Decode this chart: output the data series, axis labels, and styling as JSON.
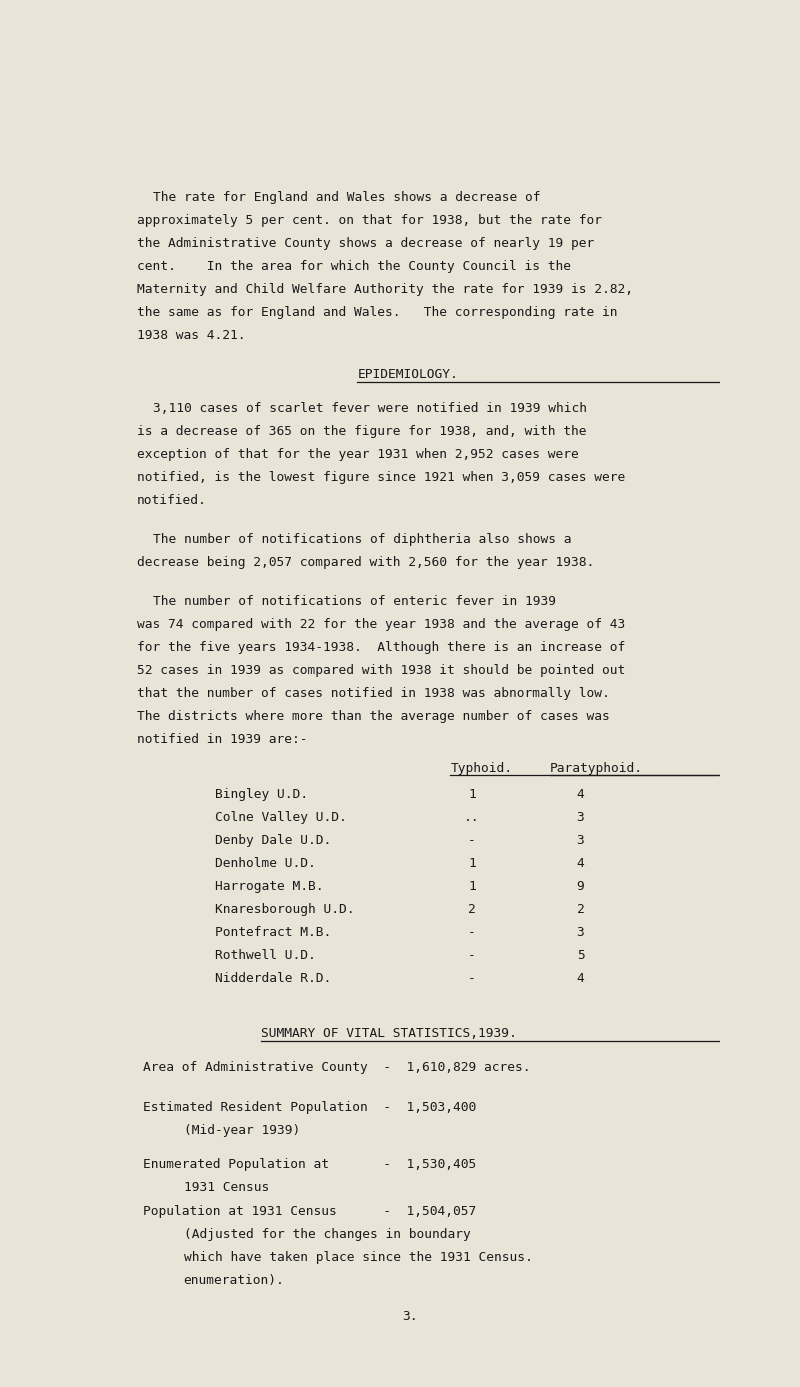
{
  "bg_color": "#e8e4d8",
  "text_color": "#1a1a1a",
  "lines_p1": [
    "The rate for England and Wales shows a decrease of",
    "approximately 5 per cent. on that for 1938, but the rate for",
    "the Administrative County shows a decrease of nearly 19 per",
    "cent.    In the area for which the County Council is the",
    "Maternity and Child Welfare Authority the rate for 1939 is 2.82,",
    "the same as for England and Wales.   The corresponding rate in",
    "1938 was 4.21."
  ],
  "heading1": "EPIDEMIOLOGY.",
  "lines_p2": [
    "3,110 cases of scarlet fever were notified in 1939 which",
    "is a decrease of 365 on the figure for 1938, and, with the",
    "exception of that for the year 1931 when 2,952 cases were",
    "notified, is the lowest figure since 1921 when 3,059 cases were",
    "notified."
  ],
  "lines_p3": [
    "The number of notifications of diphtheria also shows a",
    "decrease being 2,057 compared with 2,560 for the year 1938."
  ],
  "lines_p4": [
    "The number of notifications of enteric fever in 1939",
    "was 74 compared with 22 for the year 1938 and the average of 43",
    "for the five years 1934-1938.  Although there is an increase of",
    "52 cases in 1939 as compared with 1938 it should be pointed out",
    "that the number of cases notified in 1938 was abnormally low.",
    "The districts where more than the average number of cases was",
    "notified in 1939 are:-"
  ],
  "table_col1_header": "Typhoid.",
  "table_col2_header": "Paratyphoid.",
  "table_rows": [
    [
      "Bingley U.D.",
      "1",
      "4"
    ],
    [
      "Colne Valley U.D.",
      "..",
      "3"
    ],
    [
      "Denby Dale U.D.",
      "-",
      "3"
    ],
    [
      "Denholme U.D.",
      "1",
      "4"
    ],
    [
      "Harrogate M.B.",
      "1",
      "9"
    ],
    [
      "Knaresborough U.D.",
      "2",
      "2"
    ],
    [
      "Pontefract M.B.",
      "-",
      "3"
    ],
    [
      "Rothwell U.D.",
      "-",
      "5"
    ],
    [
      "Nidderdale R.D.",
      "-",
      "4"
    ]
  ],
  "heading2": "SUMMARY OF VITAL STATISTICS,1939.",
  "stats_lines": [
    [
      "Area of Administrative County  -  1,610,829 acres.",
      null,
      null
    ],
    [
      "Estimated Resident Population  -  1,503,400",
      "(Mid-year 1939)",
      null
    ],
    [
      "Enumerated Population at       -  1,530,405",
      "1931 Census",
      null
    ],
    [
      "Population at 1931 Census      -  1,504,057",
      "(Adjusted for the changes in boundary",
      "which have taken place since the 1931 Census."
    ]
  ],
  "stats_last_line": "enumeration).",
  "page_number": "3."
}
